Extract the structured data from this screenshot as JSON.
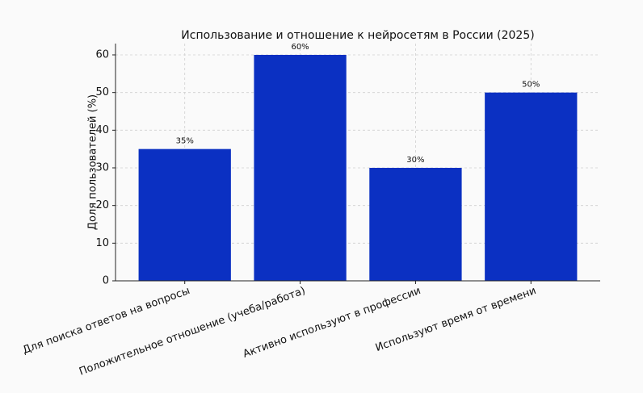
{
  "chart_data": {
    "type": "bar",
    "title": "Использование и отношение к нейросетям в России (2025)",
    "y_label": "Доля пользователей (%)",
    "categories": [
      "Для поиска ответов на вопросы",
      "Положительное отношение (учеба/работа)",
      "Активно используют в профессии",
      "Используют время от времени"
    ],
    "values": [
      35,
      60,
      30,
      50
    ],
    "value_labels": [
      "35%",
      "60%",
      "30%",
      "50%"
    ],
    "color": "#0b30c2",
    "ylim": [
      0,
      63
    ],
    "yticks": [
      0,
      10,
      20,
      30,
      40,
      50,
      60
    ],
    "grid": true
  }
}
